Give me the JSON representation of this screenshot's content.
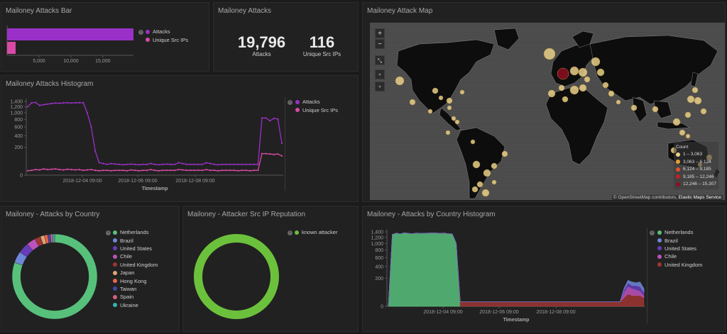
{
  "panels": {
    "attacks_bar": {
      "title": "Mailoney Attacks Bar"
    },
    "attacks_metric": {
      "title": "Mailoney Attacks"
    },
    "attack_map": {
      "title": "Mailoney Attack Map"
    },
    "attacks_histogram": {
      "title": "Mailoney Attacks Histogram"
    },
    "by_country": {
      "title": "Mailoney - Attacks by Country"
    },
    "reputation": {
      "title": "Mailoney - Attacker Src IP Reputation"
    },
    "country_histogram": {
      "title": "Mailoney - Attacks by Country Histogram"
    }
  },
  "metrics": [
    {
      "value": "19,796",
      "label": "Attacks"
    },
    {
      "value": "116",
      "label": "Unique Src IPs"
    }
  ],
  "colors": {
    "attacks": "#9b30c8",
    "unique": "#d94aa8",
    "known_attacker": "#6cc13c",
    "netherlands": "#57c17b"
  },
  "map": {
    "zoom_in": "+",
    "zoom_out": "−",
    "legend_title": "Count",
    "legend": [
      "1 – 3,063",
      "3,063 – 6,124",
      "6,124 – 9,185",
      "9,185 – 12,246",
      "12,246 – 15,307"
    ],
    "legend_colors": [
      "#e9d08a",
      "#e8a03a",
      "#e0522a",
      "#c41f26",
      "#8f0d22"
    ],
    "attribution_a": "© OpenStreetMap contributors,",
    "attribution_b": "Elastic Maps Service"
  },
  "chart_data": [
    {
      "type": "bar",
      "title": "Mailoney Attacks Bar",
      "orientation": "horizontal",
      "series": [
        {
          "name": "Attacks",
          "values": [
            19796
          ]
        },
        {
          "name": "Unique Src IPs",
          "values": [
            116
          ]
        }
      ],
      "xlim": [
        0,
        19796
      ],
      "x_ticks": [
        "5,000",
        "10,000",
        "15,000"
      ]
    },
    {
      "type": "line",
      "title": "Mailoney Attacks Histogram",
      "xlabel": "Timestamp",
      "x_ticks": [
        "2018-12-04 09:00",
        "2018-12-06 09:00",
        "2018-12-08 09:00"
      ],
      "y_ticks": [
        "1,400",
        "1,200",
        "1,000",
        "800",
        "600",
        "400",
        "200",
        "0"
      ],
      "ylim": [
        0,
        1400
      ],
      "y_scale": "sqrt",
      "series": [
        {
          "name": "Attacks",
          "values": [
            1200,
            1350,
            1360,
            1250,
            1280,
            1300,
            1320,
            1340,
            1330,
            1345,
            1350,
            1340,
            1350,
            1350,
            1350,
            1000,
            600,
            150,
            40,
            35,
            30,
            35,
            32,
            30,
            28,
            30,
            32,
            30,
            28,
            30,
            30,
            35,
            30,
            28,
            30,
            32,
            30,
            30,
            40,
            35,
            30,
            30,
            30,
            30,
            30,
            40,
            35,
            30,
            28,
            30,
            30,
            30,
            30,
            30,
            30,
            30,
            30,
            30,
            30,
            840,
            840,
            760,
            830,
            810,
            260
          ]
        },
        {
          "name": "Unique Src IPs",
          "values": [
            5,
            6,
            8,
            7,
            10,
            8,
            9,
            10,
            8,
            7,
            9,
            8,
            7,
            8,
            6,
            7,
            8,
            6,
            5,
            6,
            6,
            5,
            6,
            6,
            6,
            5,
            7,
            6,
            5,
            6,
            6,
            8,
            6,
            5,
            6,
            6,
            6,
            6,
            8,
            7,
            6,
            6,
            6,
            6,
            6,
            8,
            6,
            6,
            5,
            6,
            6,
            6,
            6,
            5,
            6,
            6,
            5,
            6,
            6,
            120,
            120,
            115,
            110,
            115,
            95
          ]
        }
      ]
    },
    {
      "type": "pie",
      "title": "Mailoney - Attacks by Country",
      "donut": true,
      "labels": [
        "Netherlands",
        "Brazil",
        "United States",
        "Chile",
        "United Kingdom",
        "Japan",
        "Hong Kong",
        "Taiwan",
        "Spain",
        "Ukraine"
      ],
      "values": [
        15307,
        840,
        780,
        650,
        420,
        290,
        240,
        200,
        170,
        140
      ],
      "colors": [
        "#57c17b",
        "#6f87d8",
        "#663db8",
        "#bc52bc",
        "#9e3533",
        "#dda772",
        "#e7664c",
        "#3f49a4",
        "#d36086",
        "#38b3b0"
      ]
    },
    {
      "type": "pie",
      "title": "Mailoney - Attacker Src IP Reputation",
      "donut": true,
      "labels": [
        "known attacker"
      ],
      "values": [
        19796
      ],
      "colors": [
        "#6cc13c"
      ]
    },
    {
      "type": "area",
      "title": "Mailoney - Attacks by Country Histogram",
      "stacked": true,
      "xlabel": "Timestamp",
      "x_ticks": [
        "2018-12-04 09:00",
        "2018-12-06 09:00",
        "2018-12-08 09:00"
      ],
      "y_ticks": [
        "1,400",
        "1,200",
        "1,000",
        "800",
        "600",
        "400",
        "200",
        "0"
      ],
      "ylim": [
        0,
        1400
      ],
      "y_scale": "sqrt",
      "series": [
        {
          "name": "Netherlands",
          "color": "#57c17b",
          "values": [
            0,
            1300,
            1350,
            1320,
            1360,
            1340,
            1330,
            1350,
            1340,
            1345,
            1350,
            1355,
            1350,
            1345,
            1350,
            1330,
            1320,
            1000,
            0,
            0,
            0,
            0,
            0,
            0,
            0,
            0,
            0,
            0,
            0,
            0,
            0,
            0,
            0,
            0,
            0,
            0,
            0,
            0,
            0,
            0,
            0,
            0,
            0,
            0,
            0,
            0,
            0,
            0,
            0,
            0,
            0,
            0,
            0,
            0,
            0,
            0,
            0,
            0,
            0,
            0,
            0,
            0,
            0,
            0,
            0
          ]
        },
        {
          "name": "United Kingdom",
          "color": "#9e3533",
          "values": [
            0,
            5,
            5,
            5,
            5,
            5,
            5,
            5,
            5,
            5,
            5,
            5,
            5,
            5,
            5,
            5,
            5,
            5,
            5,
            5,
            5,
            5,
            5,
            5,
            5,
            5,
            5,
            5,
            5,
            5,
            5,
            5,
            5,
            5,
            5,
            5,
            5,
            5,
            5,
            5,
            5,
            5,
            5,
            5,
            5,
            5,
            5,
            5,
            5,
            5,
            5,
            5,
            5,
            5,
            5,
            5,
            5,
            5,
            5,
            20,
            40,
            30,
            30,
            30,
            20
          ]
        },
        {
          "name": "Chile",
          "color": "#bc52bc",
          "values": [
            0,
            0,
            0,
            0,
            0,
            0,
            0,
            0,
            0,
            0,
            0,
            0,
            0,
            0,
            0,
            0,
            0,
            0,
            0,
            0,
            0,
            0,
            0,
            0,
            0,
            0,
            0,
            0,
            0,
            0,
            0,
            0,
            0,
            0,
            0,
            0,
            0,
            0,
            0,
            0,
            0,
            0,
            0,
            0,
            0,
            0,
            0,
            0,
            0,
            0,
            0,
            0,
            0,
            0,
            0,
            0,
            0,
            0,
            0,
            30,
            60,
            50,
            40,
            30,
            10
          ]
        },
        {
          "name": "United States",
          "color": "#663db8",
          "values": [
            0,
            0,
            0,
            0,
            0,
            0,
            0,
            0,
            0,
            0,
            0,
            0,
            0,
            0,
            0,
            0,
            0,
            0,
            0,
            0,
            0,
            0,
            0,
            0,
            0,
            0,
            0,
            0,
            0,
            0,
            0,
            0,
            0,
            0,
            0,
            0,
            0,
            0,
            0,
            0,
            0,
            0,
            0,
            0,
            0,
            0,
            0,
            0,
            0,
            0,
            0,
            0,
            0,
            0,
            0,
            0,
            0,
            0,
            0,
            20,
            40,
            30,
            40,
            40,
            20
          ]
        },
        {
          "name": "Brazil",
          "color": "#6f87d8",
          "values": [
            0,
            0,
            0,
            0,
            0,
            0,
            0,
            0,
            0,
            0,
            0,
            0,
            0,
            0,
            0,
            0,
            0,
            0,
            0,
            0,
            0,
            0,
            0,
            0,
            0,
            0,
            0,
            0,
            0,
            0,
            0,
            0,
            0,
            0,
            0,
            0,
            0,
            0,
            0,
            0,
            0,
            0,
            0,
            0,
            0,
            0,
            0,
            0,
            0,
            0,
            0,
            0,
            0,
            0,
            0,
            0,
            0,
            0,
            0,
            10,
            30,
            40,
            30,
            50,
            30
          ]
        }
      ]
    }
  ]
}
